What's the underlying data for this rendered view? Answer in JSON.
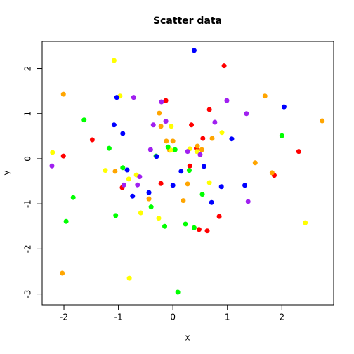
{
  "chart_data": {
    "type": "scatter",
    "title": "Scatter data",
    "x_label": "x",
    "y_label": "y",
    "xlim": [
      -2.4,
      2.95
    ],
    "ylim": [
      -3.24,
      2.6
    ],
    "xticks": [
      -2,
      -1,
      0,
      1,
      2
    ],
    "yticks": [
      -3,
      -2,
      -1,
      0,
      1,
      2
    ],
    "series": [
      {
        "color": "#ff0000",
        "x": [
          -2.01,
          -1.48,
          -0.13,
          0.34,
          0.55,
          0.94,
          0.67,
          0.85,
          -0.93,
          -0.22,
          0.31,
          0.43,
          0.48,
          0.63,
          1.86,
          2.31
        ],
        "y": [
          0.06,
          0.42,
          1.29,
          0.75,
          0.45,
          2.06,
          1.09,
          -1.28,
          -0.64,
          -0.55,
          -0.16,
          0.23,
          -1.57,
          -1.6,
          -0.37,
          0.16
        ]
      },
      {
        "color": "#ffa500",
        "x": [
          -2.01,
          -2.03,
          -1.06,
          -0.44,
          -0.25,
          -0.22,
          -0.12,
          -0.06,
          0,
          0.19,
          0.27,
          0.45,
          0.53,
          0.72,
          1.51,
          1.69,
          1.82,
          2.74
        ],
        "y": [
          1.43,
          -2.54,
          -0.28,
          -0.89,
          1.01,
          0.72,
          0.39,
          0.19,
          0.39,
          -0.93,
          -0.56,
          0.28,
          0.2,
          0.45,
          -0.09,
          1.39,
          -0.31,
          0.84
        ]
      },
      {
        "color": "#ffff00",
        "x": [
          -2.21,
          -1.08,
          -0.97,
          -1.24,
          -0.81,
          -0.67,
          -0.59,
          -0.8,
          -0.26,
          -0.03,
          -0.04,
          0.31,
          0.44,
          0.67,
          0.9,
          2.43
        ],
        "y": [
          0.14,
          2.18,
          1.39,
          -0.26,
          -0.45,
          -0.36,
          -1.2,
          -2.65,
          -1.32,
          0.72,
          0.19,
          0.22,
          0.16,
          -0.53,
          0.58,
          -1.42
        ]
      },
      {
        "color": "#00ff00",
        "x": [
          -1.63,
          -1.83,
          -1.96,
          -1.17,
          -1.05,
          -0.92,
          -0.4,
          -0.31,
          -0.15,
          -0.09,
          0.04,
          0.09,
          0.23,
          0.3,
          0.39,
          0.54,
          2.0
        ],
        "y": [
          0.86,
          -0.86,
          -1.39,
          0.23,
          -1.26,
          -0.2,
          -1.07,
          0.06,
          -1.5,
          0.26,
          0.2,
          -2.96,
          -1.45,
          -0.26,
          -1.53,
          -0.79,
          0.51
        ]
      },
      {
        "color": "#0000ff",
        "x": [
          -1.03,
          -1.08,
          -0.92,
          -0.84,
          -0.74,
          -0.44,
          -0.3,
          0,
          0.15,
          0.39,
          0.57,
          0.71,
          0.89,
          1.08,
          1.32,
          2.04
        ],
        "y": [
          1.36,
          0.75,
          0.56,
          -0.25,
          -0.83,
          -0.75,
          0.05,
          -0.59,
          -0.28,
          2.4,
          -0.17,
          -0.97,
          -0.62,
          0.44,
          -0.59,
          1.15
        ]
      },
      {
        "color": "#a020f0",
        "x": [
          -2.22,
          -0.72,
          -0.9,
          -0.65,
          -0.61,
          -0.41,
          -0.36,
          -0.21,
          -0.13,
          0.27,
          0.5,
          0.77,
          0.99,
          1.35,
          1.38
        ],
        "y": [
          -0.16,
          1.36,
          -0.58,
          -0.58,
          -0.4,
          0.2,
          0.75,
          1.26,
          0.83,
          0.16,
          0.09,
          0.81,
          1.29,
          1.0,
          -0.95
        ]
      }
    ]
  }
}
